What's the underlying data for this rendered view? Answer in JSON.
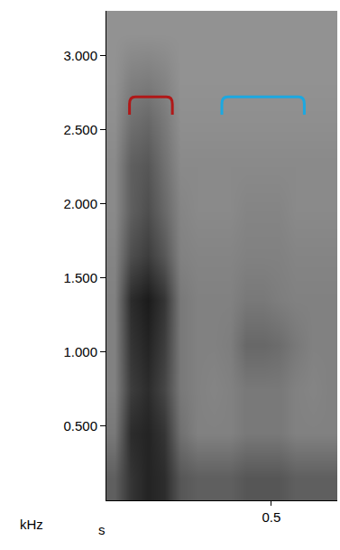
{
  "chart_data": {
    "type": "heatmap",
    "x_label": "s",
    "y_label": "kHz",
    "x": [
      0.025,
      0.075,
      0.125,
      0.175,
      0.225,
      0.275,
      0.325,
      0.375,
      0.425,
      0.475,
      0.525,
      0.575,
      0.625,
      0.675
    ],
    "y": [
      0.15,
      0.45,
      0.75,
      1.05,
      1.35,
      1.65,
      1.95,
      2.25,
      2.55,
      2.85,
      3.15
    ],
    "z": [
      [
        0.5,
        0.75,
        0.85,
        0.8,
        0.55,
        0.5,
        0.5,
        0.5,
        0.55,
        0.55,
        0.55,
        0.5,
        0.5,
        0.5
      ],
      [
        0.35,
        0.8,
        0.85,
        0.75,
        0.4,
        0.3,
        0.3,
        0.3,
        0.35,
        0.35,
        0.35,
        0.3,
        0.3,
        0.3
      ],
      [
        0.3,
        0.7,
        0.8,
        0.65,
        0.35,
        0.3,
        0.28,
        0.3,
        0.35,
        0.35,
        0.35,
        0.3,
        0.28,
        0.3
      ],
      [
        0.3,
        0.75,
        0.85,
        0.7,
        0.35,
        0.3,
        0.3,
        0.32,
        0.45,
        0.45,
        0.42,
        0.35,
        0.3,
        0.3
      ],
      [
        0.3,
        0.8,
        0.9,
        0.75,
        0.35,
        0.3,
        0.3,
        0.3,
        0.35,
        0.35,
        0.32,
        0.3,
        0.3,
        0.3
      ],
      [
        0.28,
        0.6,
        0.7,
        0.55,
        0.3,
        0.28,
        0.28,
        0.28,
        0.3,
        0.3,
        0.3,
        0.28,
        0.28,
        0.28
      ],
      [
        0.25,
        0.5,
        0.6,
        0.45,
        0.28,
        0.25,
        0.25,
        0.25,
        0.28,
        0.28,
        0.28,
        0.25,
        0.25,
        0.25
      ],
      [
        0.25,
        0.5,
        0.55,
        0.4,
        0.25,
        0.25,
        0.25,
        0.25,
        0.25,
        0.25,
        0.25,
        0.25,
        0.25,
        0.25
      ],
      [
        0.22,
        0.4,
        0.45,
        0.35,
        0.22,
        0.22,
        0.22,
        0.22,
        0.22,
        0.22,
        0.22,
        0.22,
        0.22,
        0.22
      ],
      [
        0.2,
        0.3,
        0.32,
        0.28,
        0.2,
        0.2,
        0.2,
        0.2,
        0.2,
        0.2,
        0.2,
        0.2,
        0.2,
        0.2
      ],
      [
        0.2,
        0.2,
        0.2,
        0.2,
        0.2,
        0.2,
        0.2,
        0.2,
        0.2,
        0.2,
        0.2,
        0.2,
        0.2,
        0.2
      ]
    ],
    "zlim": [
      0,
      1
    ],
    "xlim": [
      0,
      0.7
    ],
    "ylim": [
      0,
      3.3
    ],
    "xticks": [
      0.5
    ],
    "yticks": [
      {
        "value": 0.5,
        "label": "0.500"
      },
      {
        "value": 1,
        "label": "1.000"
      },
      {
        "value": 1.5,
        "label": "1.500"
      },
      {
        "value": 2,
        "label": "2.000"
      },
      {
        "value": 2.5,
        "label": "2.500"
      },
      {
        "value": 3,
        "label": "3.000"
      }
    ],
    "brackets": [
      {
        "x": [
          0.07,
          0.2
        ],
        "y": [
          2.6,
          2.72
        ],
        "color": "#b01818"
      },
      {
        "x": [
          0.35,
          0.6
        ],
        "y": [
          2.6,
          2.72
        ],
        "color": "#1ca8e0"
      }
    ]
  }
}
